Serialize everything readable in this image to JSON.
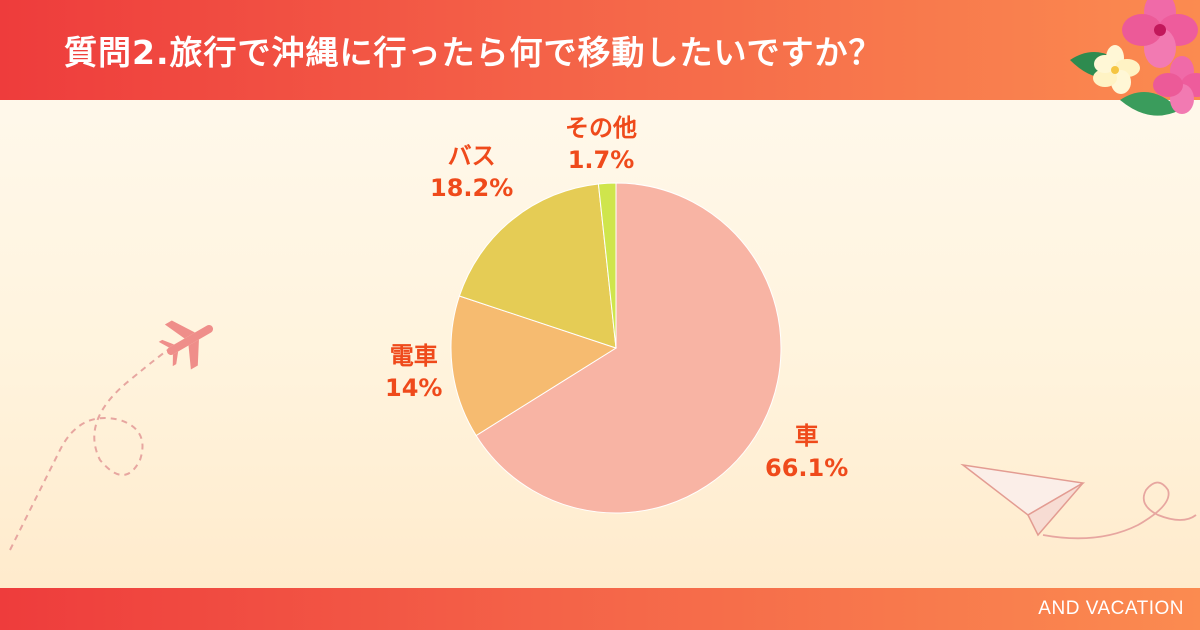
{
  "header": {
    "title": "質問2.旅行で沖縄に行ったら何で移動したいですか？"
  },
  "footer": {
    "brand": "AND VACATION"
  },
  "colors": {
    "header_start": "#ee3c3c",
    "header_end": "#fb8b50",
    "label_text": "#ef4a1b"
  },
  "chart_data": {
    "type": "pie",
    "title": "質問2.旅行で沖縄に行ったら何で移動したいですか？",
    "slices": [
      {
        "label": "車",
        "value": 66.1,
        "value_label": "66.1%",
        "color": "#f8b4a4"
      },
      {
        "label": "電車",
        "value": 14,
        "value_label": "14%",
        "color": "#f6bb70"
      },
      {
        "label": "バス",
        "value": 18.2,
        "value_label": "18.2%",
        "color": "#e5cc55"
      },
      {
        "label": "その他",
        "value": 1.7,
        "value_label": "1.7%",
        "color": "#cfe54c"
      }
    ],
    "start": "12 o'clock",
    "direction": "clockwise",
    "legend": "none"
  },
  "decorations": {
    "icons": [
      "airplane-icon",
      "paper-plane-icon",
      "hibiscus-flower-icon"
    ]
  }
}
